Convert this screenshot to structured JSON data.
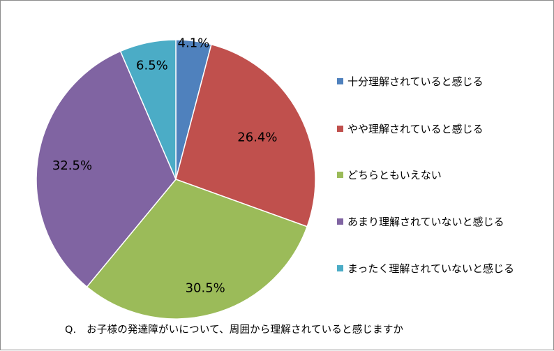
{
  "chart_data": {
    "type": "pie",
    "categories": [
      "十分理解されていると感じる",
      "やや理解されていると感じる",
      "どちらともいえない",
      "あまり理解されていないと感じる",
      "まったく理解されていないと感じる"
    ],
    "values": [
      4.1,
      26.4,
      30.5,
      32.5,
      6.5
    ],
    "data_labels": [
      "4.1%",
      "26.4%",
      "30.5%",
      "32.5%",
      "6.5%"
    ],
    "colors": [
      "#4f81bd",
      "#c0504d",
      "#9bbb59",
      "#8064a2",
      "#4bacc6"
    ],
    "start_angle": "12 o'clock",
    "direction": "clockwise",
    "legend_position": "right"
  },
  "question": "Q.　お子様の発達障がいについて、周囲から理解されていると感じますか"
}
